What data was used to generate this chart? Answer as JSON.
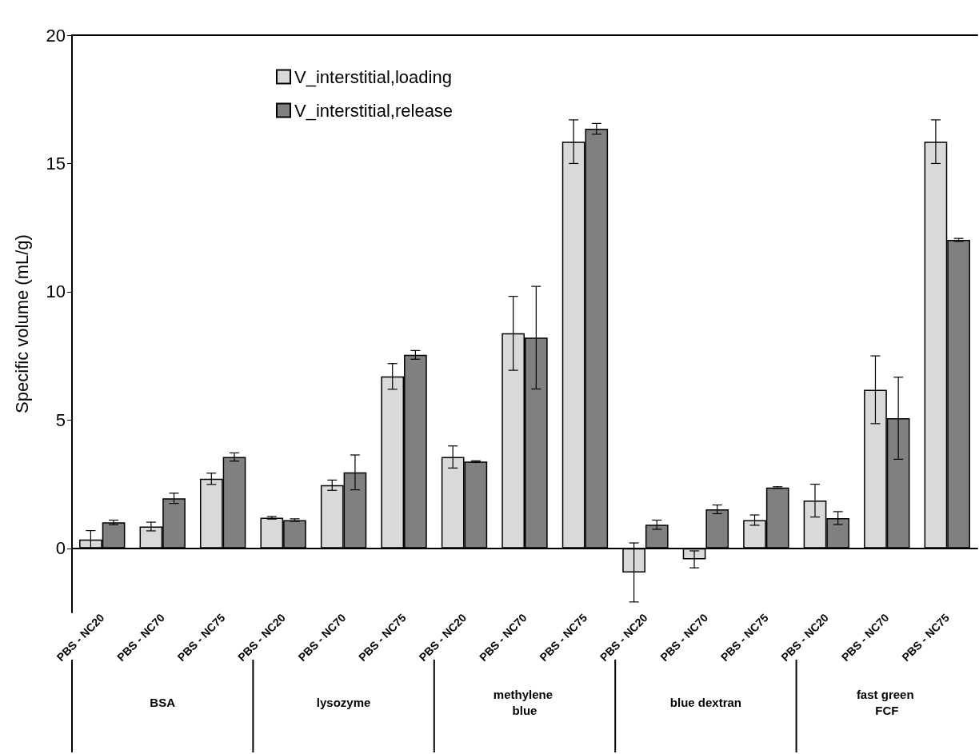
{
  "chart_data": {
    "type": "bar",
    "ylabel": "Specific volume (mL/g)",
    "categories": [
      "PBS - NC20",
      "PBS - NC70",
      "PBS - NC75",
      "PBS - NC20",
      "PBS - NC70",
      "PBS - NC75",
      "PBS - NC20",
      "PBS - NC70",
      "PBS - NC75",
      "PBS - NC20",
      "PBS - NC70",
      "PBS - NC75",
      "PBS - NC20",
      "PBS - NC70",
      "PBS - NC75"
    ],
    "series": [
      {
        "name": "V_interstitial,loading",
        "color": "#d9d9d9",
        "values": [
          0.34,
          0.85,
          2.71,
          1.19,
          2.46,
          6.7,
          3.56,
          8.38,
          15.85,
          -0.94,
          -0.43,
          1.1,
          1.86,
          6.18,
          15.85
        ],
        "errors": [
          0.35,
          0.17,
          0.22,
          0.05,
          0.2,
          0.5,
          0.43,
          1.44,
          0.85,
          1.15,
          0.33,
          0.2,
          0.64,
          1.32,
          0.85
        ]
      },
      {
        "name": "V_interstitial,release",
        "color": "#808080",
        "values": [
          1.01,
          1.95,
          3.56,
          1.1,
          2.96,
          7.54,
          3.38,
          8.21,
          16.35,
          0.92,
          1.52,
          2.37,
          1.18,
          5.07,
          12.02
        ],
        "errors": [
          0.09,
          0.2,
          0.16,
          0.05,
          0.68,
          0.17,
          0.03,
          2.0,
          0.21,
          0.18,
          0.17,
          0.03,
          0.25,
          1.6,
          0.06
        ]
      }
    ],
    "annotations": [
      "BSA",
      "lysozyme",
      "methylene blue",
      "blue dextran",
      "fast green FCF"
    ],
    "ylim": [
      -2.5,
      20
    ],
    "yticks": [
      0,
      5,
      10,
      15,
      20
    ],
    "legend": "top left"
  }
}
